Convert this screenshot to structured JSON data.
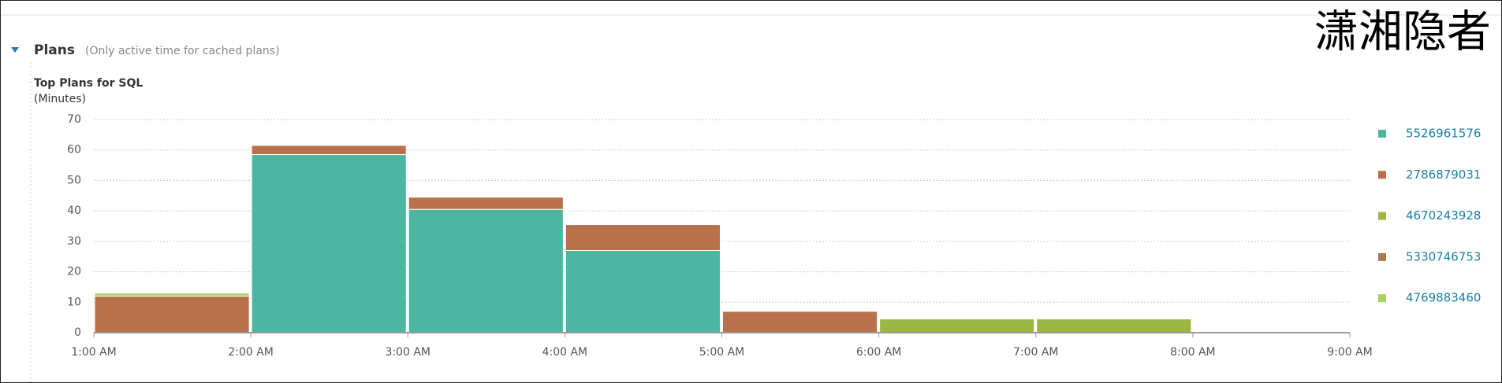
{
  "header": {
    "title": "Plans",
    "subtitle": "(Only active time for cached plans)",
    "watermark": "潇湘隐者"
  },
  "chart_data": {
    "type": "bar",
    "stacked": true,
    "title": "Top Plans for SQL",
    "y_label": "(Minutes)",
    "xticks": [
      "1:00 AM",
      "2:00 AM",
      "3:00 AM",
      "4:00 AM",
      "5:00 AM",
      "6:00 AM",
      "7:00 AM",
      "8:00 AM",
      "9:00 AM"
    ],
    "ylim": [
      0,
      70
    ],
    "yticks": [
      0,
      10,
      20,
      30,
      40,
      50,
      60,
      70
    ],
    "grid": true,
    "legend": "right",
    "series": [
      {
        "name": "5526961576",
        "color": "#4db6a0",
        "values": [
          0,
          58.5,
          40.5,
          27,
          0,
          0,
          0,
          0
        ]
      },
      {
        "name": "2786879031",
        "color": "#b8714a",
        "values": [
          12,
          3,
          4,
          8.5,
          7,
          0,
          0,
          0
        ]
      },
      {
        "name": "4670243928",
        "color": "#9db542",
        "values": [
          0,
          0,
          0,
          0,
          0,
          4.5,
          4.5,
          0
        ]
      },
      {
        "name": "5330746753",
        "color": "#a97a4c",
        "values": [
          0,
          0,
          0,
          0,
          0,
          0,
          0,
          0
        ]
      },
      {
        "name": "4769883460",
        "color": "#abd05e",
        "values": [
          1,
          0,
          0,
          0,
          0,
          0,
          0,
          0
        ]
      }
    ]
  }
}
